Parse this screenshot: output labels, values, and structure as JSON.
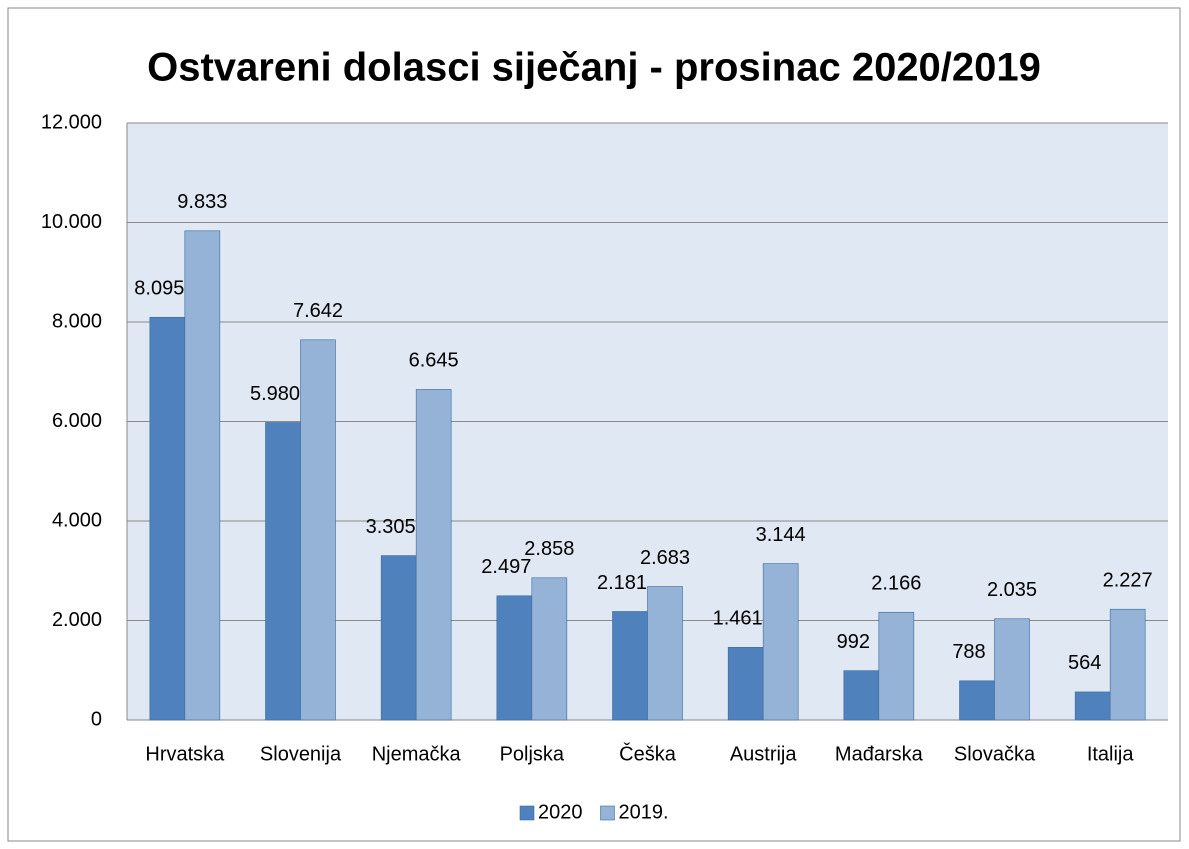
{
  "chart_data": {
    "type": "bar",
    "title": "Ostvareni dolasci siječanj - prosinac 2020/2019",
    "categories": [
      "Hrvatska",
      "Slovenija",
      "Njemačka",
      "Poljska",
      "Češka",
      "Austrija",
      "Mađarska",
      "Slovačka",
      "Italija"
    ],
    "series": [
      {
        "name": "2020",
        "color": "#4f81bd",
        "values": [
          8095,
          5980,
          3305,
          2497,
          2181,
          1461,
          992,
          788,
          564
        ],
        "value_labels": [
          "8.095",
          "5.980",
          "3.305",
          "2.497",
          "2.181",
          "1.461",
          "992",
          "788",
          "564"
        ]
      },
      {
        "name": "2019.",
        "color": "#95b3d7",
        "values": [
          9833,
          7642,
          6645,
          2858,
          2683,
          3144,
          2166,
          2035,
          2227
        ],
        "value_labels": [
          "9.833",
          "7.642",
          "6.645",
          "2.858",
          "2.683",
          "3.144",
          "2.166",
          "2.035",
          "2.227"
        ]
      }
    ],
    "ylim": [
      0,
      12000
    ],
    "yticks": [
      0,
      {
        "value": 2000,
        "label": "2.000"
      },
      {
        "value": 4000,
        "label": "4.000"
      },
      {
        "value": 6000,
        "label": "6.000"
      },
      {
        "value": 8000,
        "label": "8.000"
      },
      {
        "value": 10000,
        "label": "10.000"
      },
      {
        "value": 12000,
        "label": "12.000"
      }
    ],
    "grid": true,
    "legend": "bottom"
  }
}
